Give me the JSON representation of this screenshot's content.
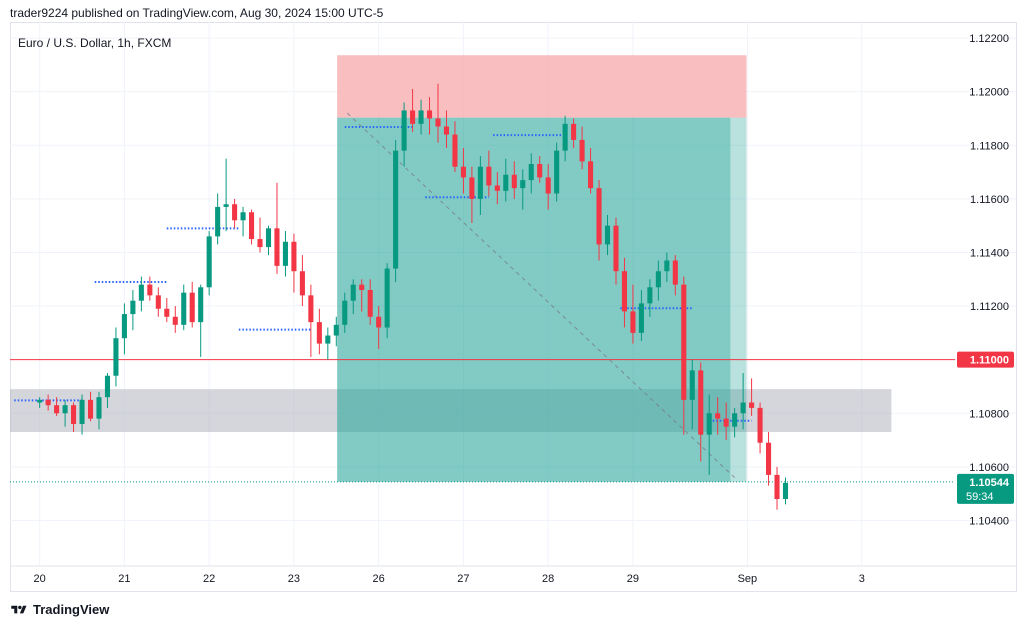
{
  "header": {
    "text": "trader9224 published on TradingView.com, Aug 30, 2024 15:00 UTC-5"
  },
  "symbol": {
    "text": "Euro / U.S. Dollar, 1h, FXCM"
  },
  "footer": {
    "brand": "TradingView",
    "logo_icon": "tradingview-logo-icon"
  },
  "colors": {
    "up": "#089981",
    "down": "#f23645",
    "grid": "#f0f3fa",
    "stop_zone": "#f7a9ab",
    "target_zone": "#26a69a",
    "support_zone": "#b2b5be",
    "level_line": "#f23645",
    "dots": "#2962ff"
  },
  "chart_data": {
    "type": "candlestick",
    "title": "Euro / U.S. Dollar, 1h, FXCM",
    "y_ticks": [
      1.122,
      1.12,
      1.118,
      1.116,
      1.114,
      1.112,
      1.11,
      1.108,
      1.106,
      1.104
    ],
    "y_tick_labels": [
      "1.12200",
      "1.12000",
      "1.11800",
      "1.11600",
      "1.11400",
      "1.11200",
      "",
      "1.10800",
      "1.10600",
      "1.10400"
    ],
    "ylim": [
      1.1023,
      1.1226
    ],
    "x_labels": [
      "20",
      "21",
      "22",
      "23",
      "26",
      "27",
      "28",
      "29",
      "Sep",
      "3"
    ],
    "x_label_index": [
      0,
      10,
      20,
      30,
      40,
      50,
      60,
      70,
      83.5,
      97
    ],
    "xlim": [
      -3.5,
      108
    ],
    "grid": true,
    "key_level": {
      "value": 1.11,
      "label": "1.11000"
    },
    "last_price": {
      "value": 1.10544,
      "label": "1.10544",
      "countdown": "59:34"
    },
    "short_position": {
      "start_index": 35.1,
      "end_index": 81.5,
      "entry": 1.11903,
      "stop": 1.12136,
      "target": 1.10544,
      "projection_end_index": 83.4
    },
    "support_zone": {
      "start_index": -3.5,
      "end_index": 100.5,
      "low": 1.1073,
      "high": 1.1089
    },
    "horizontal_dotted_levels": [
      {
        "from": -3,
        "to": 5,
        "value": 1.10848
      },
      {
        "from": 6.5,
        "to": 15,
        "value": 1.1129
      },
      {
        "from": 15,
        "to": 23.5,
        "value": 1.1149
      },
      {
        "from": 23.5,
        "to": 32,
        "value": 1.11112
      },
      {
        "from": 36,
        "to": 44,
        "value": 1.11868
      },
      {
        "from": 45.5,
        "to": 53,
        "value": 1.11606
      },
      {
        "from": 53.5,
        "to": 62,
        "value": 1.11838
      },
      {
        "from": 68.5,
        "to": 77,
        "value": 1.11192
      },
      {
        "from": 79,
        "to": 84,
        "value": 1.10772
      }
    ],
    "projection_line": {
      "from_index": 36.3,
      "from_value": 1.1192,
      "to_index": 82,
      "to_value": 1.1056
    },
    "candles": [
      [
        1.1084,
        1.1086,
        1.1082,
        1.1085
      ],
      [
        1.1085,
        1.1087,
        1.1081,
        1.1083
      ],
      [
        1.1083,
        1.1086,
        1.1079,
        1.108
      ],
      [
        1.108,
        1.1085,
        1.1075,
        1.1083
      ],
      [
        1.1083,
        1.1084,
        1.1073,
        1.1076
      ],
      [
        1.1076,
        1.1087,
        1.1072,
        1.1085
      ],
      [
        1.1085,
        1.1088,
        1.1077,
        1.1078
      ],
      [
        1.1078,
        1.1088,
        1.1074,
        1.1086
      ],
      [
        1.1086,
        1.1095,
        1.1082,
        1.1094
      ],
      [
        1.1094,
        1.1112,
        1.109,
        1.1108
      ],
      [
        1.1108,
        1.1121,
        1.1102,
        1.1117
      ],
      [
        1.1117,
        1.1126,
        1.1111,
        1.1122
      ],
      [
        1.1122,
        1.1131,
        1.1118,
        1.1128
      ],
      [
        1.1128,
        1.1131,
        1.1122,
        1.1124
      ],
      [
        1.1124,
        1.1127,
        1.1116,
        1.1119
      ],
      [
        1.1119,
        1.1123,
        1.1114,
        1.1116
      ],
      [
        1.1116,
        1.112,
        1.111,
        1.1113
      ],
      [
        1.1113,
        1.1128,
        1.1111,
        1.1125
      ],
      [
        1.1125,
        1.1129,
        1.1112,
        1.1114
      ],
      [
        1.1114,
        1.1128,
        1.1101,
        1.1127
      ],
      [
        1.1127,
        1.1148,
        1.1124,
        1.1146
      ],
      [
        1.1146,
        1.1162,
        1.1143,
        1.1157
      ],
      [
        1.1157,
        1.1175,
        1.1148,
        1.1158
      ],
      [
        1.1158,
        1.116,
        1.1149,
        1.1152
      ],
      [
        1.1152,
        1.1157,
        1.1146,
        1.1155
      ],
      [
        1.1155,
        1.1156,
        1.1143,
        1.1145
      ],
      [
        1.1145,
        1.1153,
        1.114,
        1.1142
      ],
      [
        1.1142,
        1.115,
        1.1139,
        1.1149
      ],
      [
        1.1149,
        1.1166,
        1.1132,
        1.1135
      ],
      [
        1.1135,
        1.1148,
        1.1131,
        1.1144
      ],
      [
        1.1144,
        1.1147,
        1.1125,
        1.1133
      ],
      [
        1.1133,
        1.1139,
        1.112,
        1.1124
      ],
      [
        1.1124,
        1.1128,
        1.1101,
        1.1114
      ],
      [
        1.1114,
        1.1119,
        1.1102,
        1.1106
      ],
      [
        1.1106,
        1.1112,
        1.11,
        1.1109
      ],
      [
        1.1109,
        1.1116,
        1.1105,
        1.1113
      ],
      [
        1.1113,
        1.1125,
        1.111,
        1.1122
      ],
      [
        1.1122,
        1.113,
        1.1117,
        1.1128
      ],
      [
        1.1128,
        1.113,
        1.1118,
        1.1126
      ],
      [
        1.1126,
        1.113,
        1.1113,
        1.1116
      ],
      [
        1.1116,
        1.112,
        1.1104,
        1.1112
      ],
      [
        1.1112,
        1.1136,
        1.1108,
        1.1134
      ],
      [
        1.1134,
        1.1182,
        1.1129,
        1.1178
      ],
      [
        1.1178,
        1.1196,
        1.1172,
        1.1193
      ],
      [
        1.1193,
        1.1201,
        1.1185,
        1.1188
      ],
      [
        1.1188,
        1.1197,
        1.1184,
        1.1193
      ],
      [
        1.1193,
        1.1198,
        1.1184,
        1.119
      ],
      [
        1.119,
        1.1203,
        1.1181,
        1.1187
      ],
      [
        1.1187,
        1.1193,
        1.1179,
        1.1184
      ],
      [
        1.1184,
        1.1189,
        1.117,
        1.1172
      ],
      [
        1.1172,
        1.1179,
        1.1162,
        1.1168
      ],
      [
        1.1168,
        1.1172,
        1.1151,
        1.116
      ],
      [
        1.116,
        1.1176,
        1.1154,
        1.1172
      ],
      [
        1.1172,
        1.1178,
        1.1161,
        1.1165
      ],
      [
        1.1165,
        1.117,
        1.1158,
        1.1163
      ],
      [
        1.1163,
        1.1175,
        1.1159,
        1.1169
      ],
      [
        1.1169,
        1.1174,
        1.116,
        1.1164
      ],
      [
        1.1164,
        1.1171,
        1.1156,
        1.1167
      ],
      [
        1.1167,
        1.1177,
        1.1162,
        1.1173
      ],
      [
        1.1173,
        1.1176,
        1.1166,
        1.1168
      ],
      [
        1.1168,
        1.1173,
        1.1156,
        1.1162
      ],
      [
        1.1162,
        1.1181,
        1.1159,
        1.1178
      ],
      [
        1.1178,
        1.1191,
        1.1174,
        1.1188
      ],
      [
        1.1188,
        1.119,
        1.1179,
        1.1182
      ],
      [
        1.1182,
        1.1187,
        1.1171,
        1.1174
      ],
      [
        1.1174,
        1.1179,
        1.1162,
        1.1164
      ],
      [
        1.1164,
        1.1167,
        1.1137,
        1.1143
      ],
      [
        1.1143,
        1.1154,
        1.1139,
        1.115
      ],
      [
        1.115,
        1.1153,
        1.1128,
        1.1133
      ],
      [
        1.1133,
        1.1138,
        1.1112,
        1.1118
      ],
      [
        1.1118,
        1.1128,
        1.1106,
        1.111
      ],
      [
        1.111,
        1.1126,
        1.1107,
        1.1121
      ],
      [
        1.1121,
        1.113,
        1.1116,
        1.1127
      ],
      [
        1.1127,
        1.1137,
        1.1122,
        1.1133
      ],
      [
        1.1133,
        1.114,
        1.1129,
        1.1137
      ],
      [
        1.1137,
        1.1139,
        1.1124,
        1.1128
      ],
      [
        1.1128,
        1.1131,
        1.1072,
        1.1085
      ],
      [
        1.1085,
        1.11,
        1.1074,
        1.1096
      ],
      [
        1.1096,
        1.1099,
        1.1062,
        1.1072
      ],
      [
        1.1072,
        1.1087,
        1.1057,
        1.108
      ],
      [
        1.108,
        1.1086,
        1.1072,
        1.1078
      ],
      [
        1.1078,
        1.1084,
        1.107,
        1.1075
      ],
      [
        1.1075,
        1.1082,
        1.1071,
        1.108
      ],
      [
        1.108,
        1.1095,
        1.1074,
        1.1084
      ],
      [
        1.1084,
        1.1093,
        1.1079,
        1.1082
      ],
      [
        1.1082,
        1.1084,
        1.1065,
        1.1069
      ],
      [
        1.1069,
        1.1073,
        1.1053,
        1.1057
      ],
      [
        1.1057,
        1.106,
        1.1044,
        1.1048
      ],
      [
        1.1048,
        1.1056,
        1.1046,
        1.1054
      ]
    ]
  },
  "axis": {
    "key_level_label": "1.11000",
    "last_price_label": "1.10544",
    "countdown": "59:34"
  }
}
